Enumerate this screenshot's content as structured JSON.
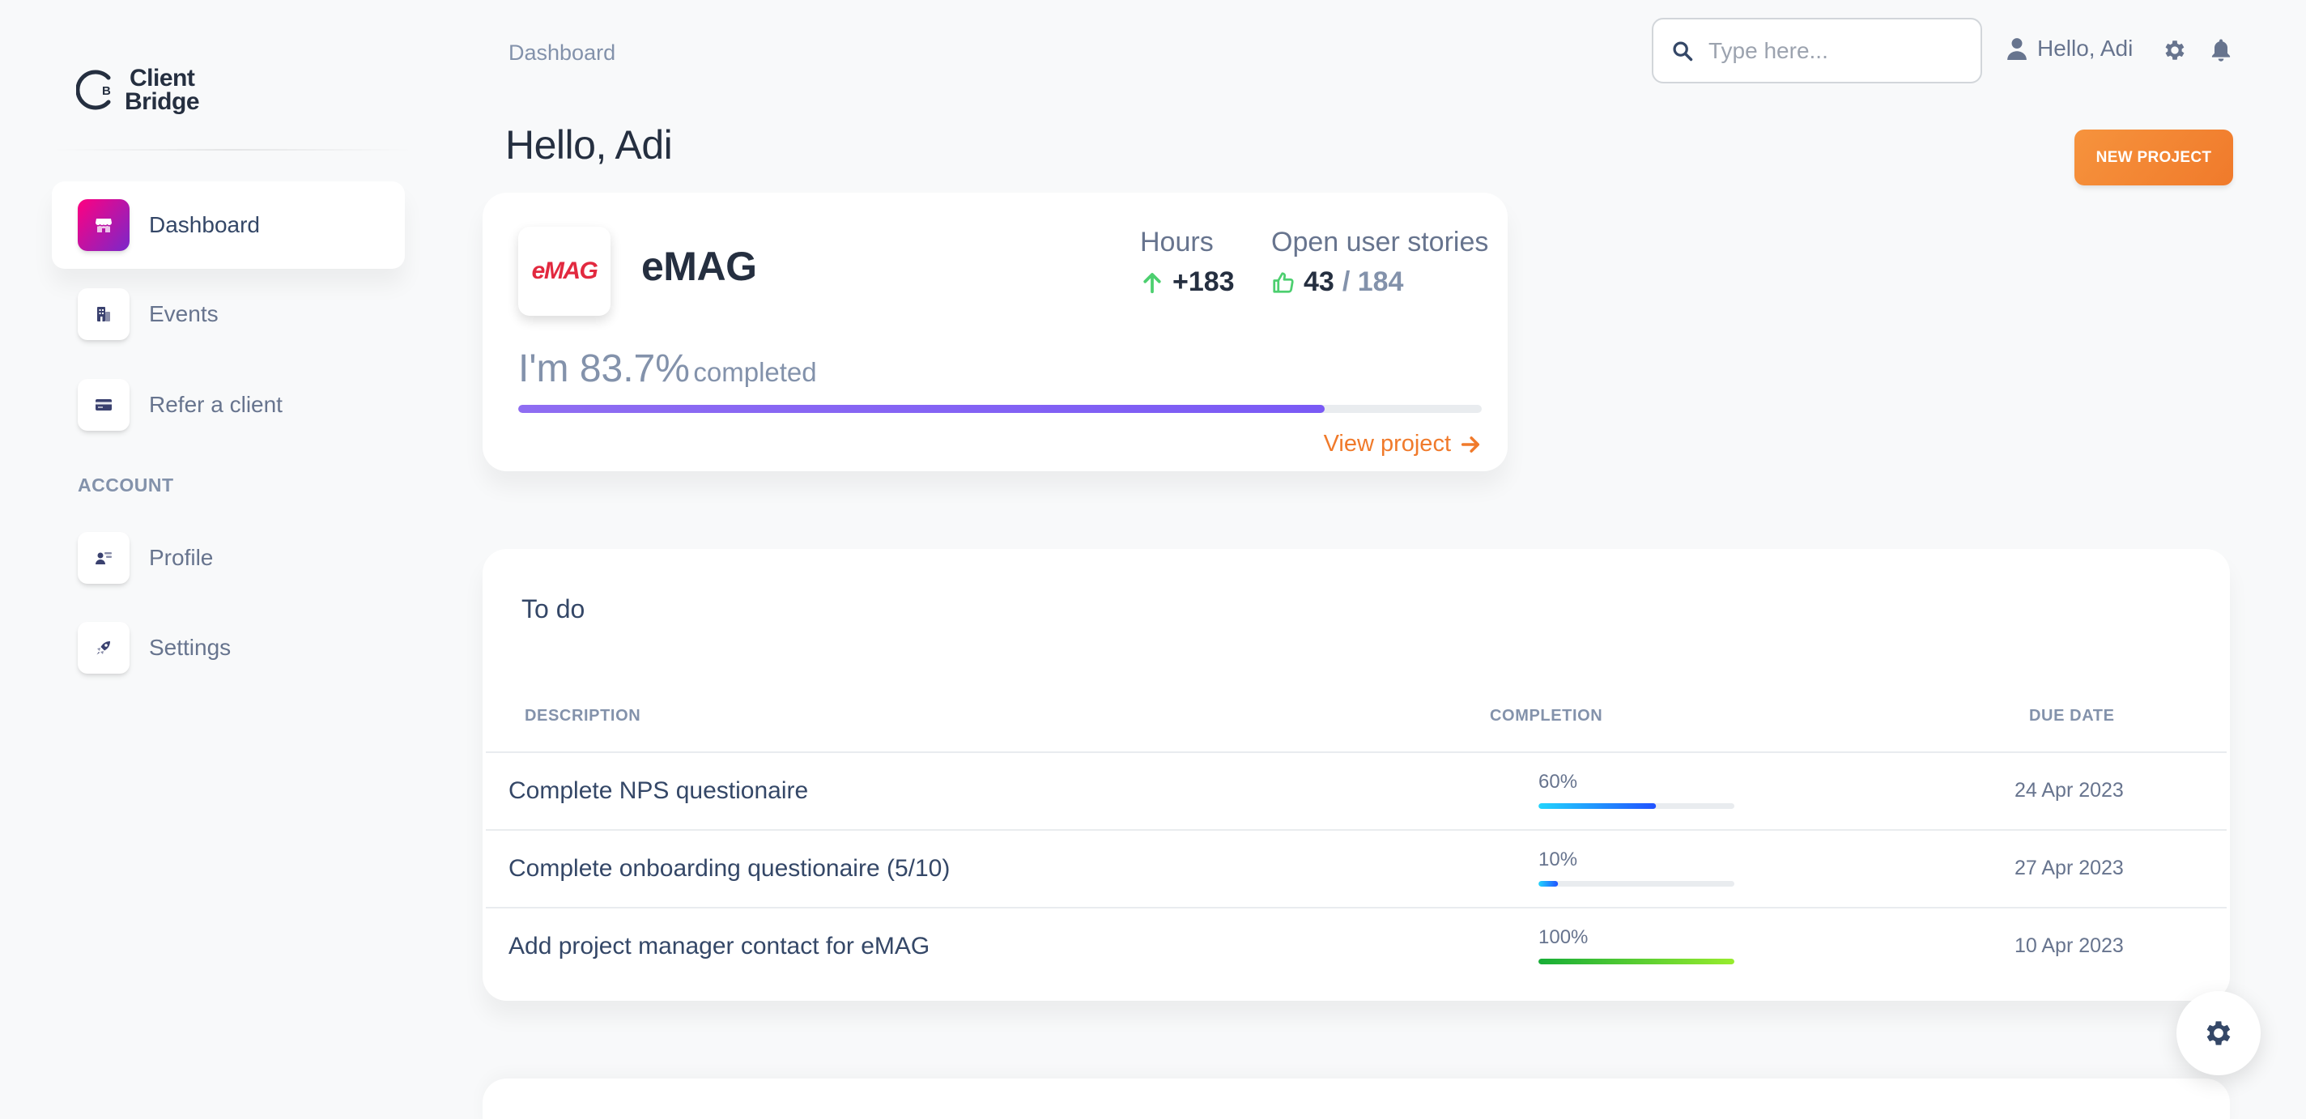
{
  "brand": {
    "mark_letter": "B",
    "line1": "Client",
    "line2": "Bridge"
  },
  "sidebar": {
    "items": [
      {
        "label": "Dashboard",
        "icon": "shop-icon",
        "active": true
      },
      {
        "label": "Events",
        "icon": "office-icon",
        "active": false
      },
      {
        "label": "Refer a client",
        "icon": "credit-card-icon",
        "active": false
      }
    ],
    "section_label": "ACCOUNT",
    "account_items": [
      {
        "label": "Profile",
        "icon": "user-card-icon"
      },
      {
        "label": "Settings",
        "icon": "rocket-icon"
      }
    ]
  },
  "header": {
    "breadcrumb": "Dashboard",
    "title": "Hello, Adi",
    "search_placeholder": "Type here...",
    "user_label": "Hello, Adi",
    "new_project_label": "NEW PROJECT"
  },
  "project": {
    "logo_text": "eMAG",
    "name": "eMAG",
    "hours_label": "Hours",
    "hours_value": "+183",
    "stories_label": "Open user stories",
    "stories_open": "43",
    "stories_total": "/ 184",
    "completion_big": "I'm 83.7%",
    "completion_small": "completed",
    "completion_fraction": 0.837,
    "view_label": "View project"
  },
  "todo": {
    "title": "To do",
    "columns": {
      "description": "DESCRIPTION",
      "completion": "COMPLETION",
      "due": "DUE DATE"
    },
    "rows": [
      {
        "description": "Complete NPS questionaire",
        "percent_label": "60%",
        "fraction": 0.6,
        "due": "24 Apr 2023",
        "color": "blue"
      },
      {
        "description": "Complete onboarding questionaire (5/10)",
        "percent_label": "10%",
        "fraction": 0.1,
        "due": "27 Apr 2023",
        "color": "blue"
      },
      {
        "description": "Add project manager contact for eMAG",
        "percent_label": "100%",
        "fraction": 1.0,
        "due": "10 Apr 2023",
        "color": "green"
      }
    ]
  },
  "colors": {
    "accent_orange": "#f07a2b",
    "active_gradient": "#cb0c9f",
    "progress_purple": "#7a5af5"
  }
}
